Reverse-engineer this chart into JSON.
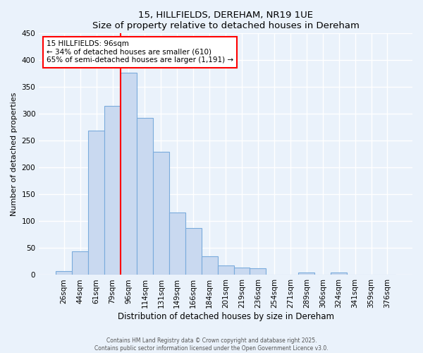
{
  "title": "15, HILLFIELDS, DEREHAM, NR19 1UE",
  "subtitle": "Size of property relative to detached houses in Dereham",
  "xlabel": "Distribution of detached houses by size in Dereham",
  "ylabel": "Number of detached properties",
  "bar_labels": [
    "26sqm",
    "44sqm",
    "61sqm",
    "79sqm",
    "96sqm",
    "114sqm",
    "131sqm",
    "149sqm",
    "166sqm",
    "184sqm",
    "201sqm",
    "219sqm",
    "236sqm",
    "254sqm",
    "271sqm",
    "289sqm",
    "306sqm",
    "324sqm",
    "341sqm",
    "359sqm",
    "376sqm"
  ],
  "bar_values": [
    7,
    44,
    268,
    314,
    376,
    292,
    229,
    116,
    87,
    35,
    18,
    14,
    12,
    0,
    0,
    5,
    0,
    4,
    0,
    1,
    0
  ],
  "bar_color": "#c9d9f0",
  "bar_edge_color": "#7aabdc",
  "vline_x": 4,
  "vline_color": "red",
  "annotation_text": "15 HILLFIELDS: 96sqm\n← 34% of detached houses are smaller (610)\n65% of semi-detached houses are larger (1,191) →",
  "annotation_box_color": "white",
  "annotation_box_edge": "red",
  "ylim": [
    0,
    450
  ],
  "yticks": [
    0,
    50,
    100,
    150,
    200,
    250,
    300,
    350,
    400,
    450
  ],
  "bg_color": "#eaf2fb",
  "plot_bg_color": "#eaf2fb",
  "footer_line1": "Contains HM Land Registry data © Crown copyright and database right 2025.",
  "footer_line2": "Contains public sector information licensed under the Open Government Licence v3.0."
}
